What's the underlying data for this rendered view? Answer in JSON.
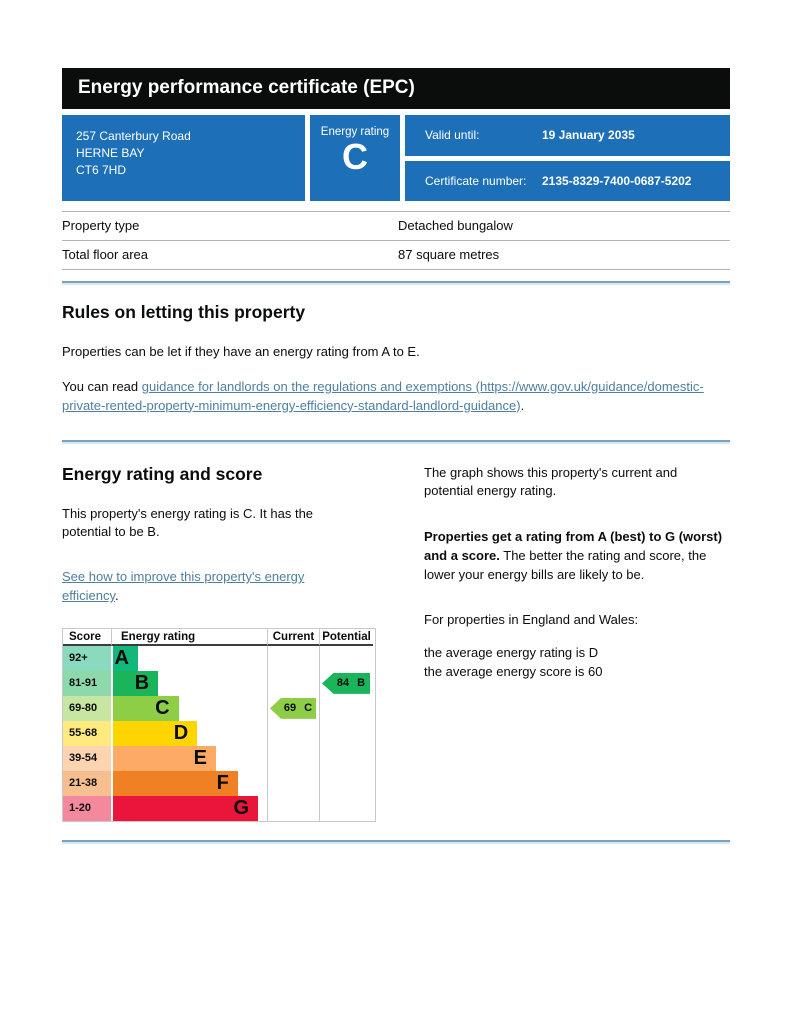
{
  "header": {
    "title": "Energy performance certificate (EPC)"
  },
  "summary": {
    "address_lines": [
      "257 Canterbury Road",
      "HERNE BAY",
      "CT6 7HD"
    ],
    "energy_rating_label": "Energy rating",
    "energy_rating_value": "C",
    "valid_until_label": "Valid until:",
    "valid_until_value": "19 January 2035",
    "certificate_number_label": "Certificate number:",
    "certificate_number_value": "2135-8329-7400-0687-5202"
  },
  "property_facts": {
    "rows": [
      {
        "label": "Property type",
        "value": "Detached bungalow"
      },
      {
        "label": "Total floor area",
        "value": "87 square metres"
      }
    ]
  },
  "letting_rules": {
    "heading": "Rules on letting this property",
    "paragraph1": "Properties can be let if they have an energy rating from A to E.",
    "paragraph2_prefix": "You can read ",
    "guidance_link_text": "guidance for landlords on the regulations and exemptions (https://www.gov.uk/guidance/domestic-private-rented-property-minimum-energy-efficiency-standard-landlord-guidance)",
    "paragraph2_suffix": "."
  },
  "rating_section": {
    "heading": "Energy rating and score",
    "intro": "This property's energy rating is C. It has the potential to be B.",
    "improve_link_text": "See how to improve this property's energy efficiency",
    "improve_link_suffix": ".",
    "right_para1": "The graph shows this property's current and potential energy rating.",
    "right_para2_bold": "Properties get a rating from A (best) to G (worst) and a score.",
    "right_para2_rest": " The better the rating and score, the lower your energy bills are likely to be.",
    "right_para3": "For properties in England and Wales:",
    "average_rating_line": "the average energy rating is D",
    "average_score_line": "the average energy score is 60"
  },
  "chart_data": {
    "type": "bar",
    "title": "Energy rating and score",
    "column_headers": {
      "score": "Score",
      "rating": "Energy rating",
      "current": "Current",
      "potential": "Potential"
    },
    "bands": [
      {
        "score_range": "92+",
        "rating": "A",
        "bar_color": "#12b77c",
        "score_bg": "#8adbbd",
        "bar_width_pct": 16
      },
      {
        "score_range": "81-91",
        "rating": "B",
        "bar_color": "#1ab45a",
        "score_bg": "#8dd9ac",
        "bar_width_pct": 29
      },
      {
        "score_range": "69-80",
        "rating": "C",
        "bar_color": "#8dce46",
        "score_bg": "#c6e6a2",
        "bar_width_pct": 42
      },
      {
        "score_range": "55-68",
        "rating": "D",
        "bar_color": "#ffd500",
        "score_bg": "#ffea7f",
        "bar_width_pct": 54
      },
      {
        "score_range": "39-54",
        "rating": "E",
        "bar_color": "#fcaa65",
        "score_bg": "#fdd4b2",
        "bar_width_pct": 66
      },
      {
        "score_range": "21-38",
        "rating": "F",
        "bar_color": "#ef8023",
        "score_bg": "#f7bf90",
        "bar_width_pct": 80
      },
      {
        "score_range": "1-20",
        "rating": "G",
        "bar_color": "#e9153b",
        "score_bg": "#f4899d",
        "bar_width_pct": 93
      }
    ],
    "current": {
      "score": 69,
      "rating": "C",
      "label": "69 C",
      "band_index": 2,
      "arrow_color": "#8dce46"
    },
    "potential": {
      "score": 84,
      "rating": "B",
      "label": "84 B",
      "band_index": 1,
      "arrow_color": "#1ab45a"
    }
  },
  "colors": {
    "gov_blue": "#1d70b8",
    "header_black": "#0b0c0c",
    "link": "#4e7f9e",
    "rule_blue": "#79a3c3",
    "chart_border": "#c9c9c9"
  }
}
